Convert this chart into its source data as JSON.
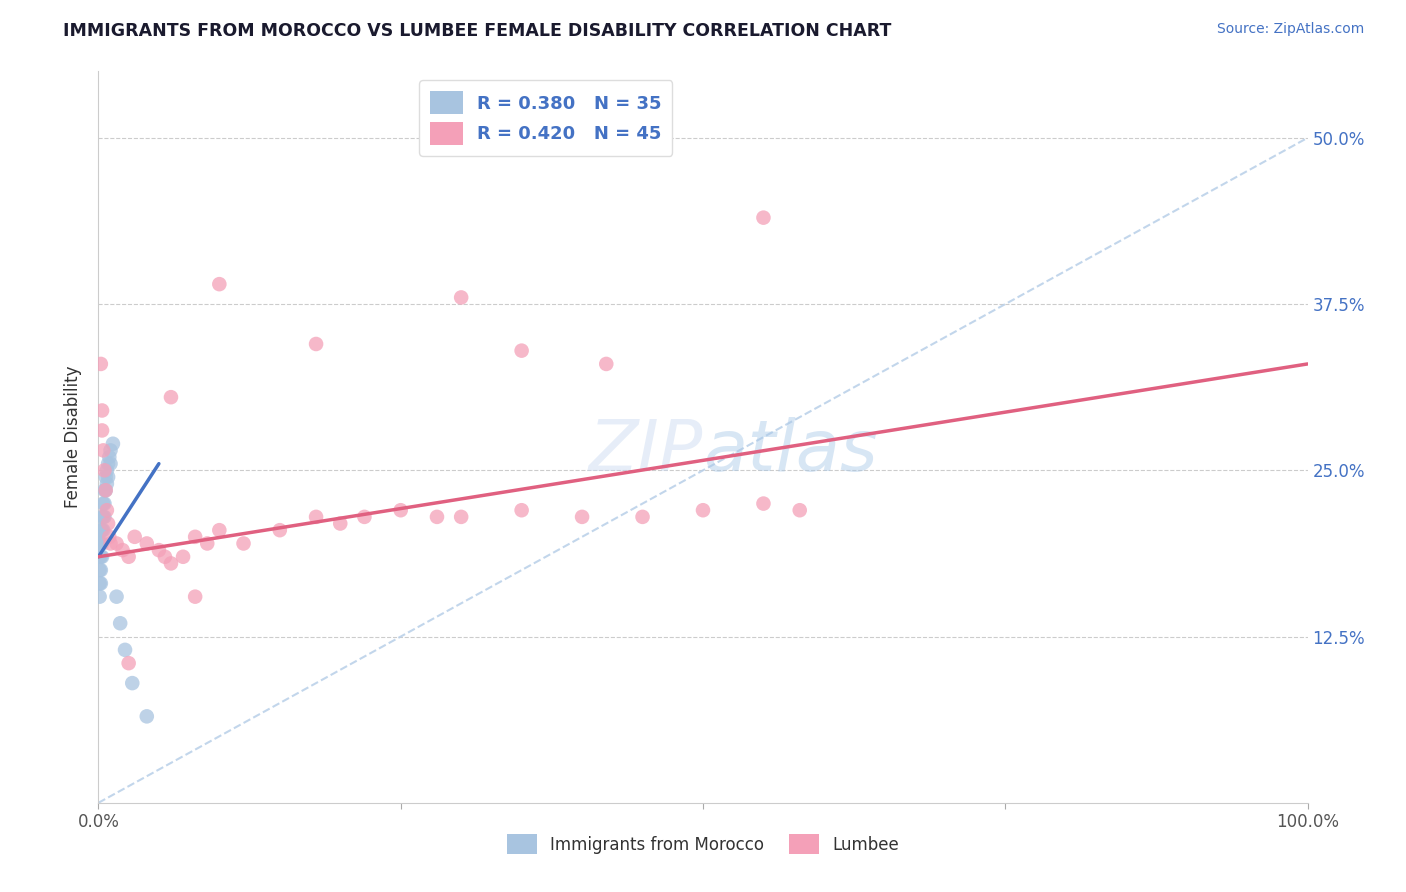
{
  "title": "IMMIGRANTS FROM MOROCCO VS LUMBEE FEMALE DISABILITY CORRELATION CHART",
  "source": "Source: ZipAtlas.com",
  "ylabel": "Female Disability",
  "legend_label1": "Immigrants from Morocco",
  "legend_label2": "Lumbee",
  "r1": 0.38,
  "n1": 35,
  "r2": 0.42,
  "n2": 45,
  "xlim": [
    0,
    1.0
  ],
  "ylim": [
    0,
    0.55
  ],
  "yticks": [
    0,
    0.125,
    0.25,
    0.375,
    0.5
  ],
  "ytick_labels": [
    "",
    "12.5%",
    "25.0%",
    "37.5%",
    "50.0%"
  ],
  "color_morocco": "#a8c4e0",
  "color_lumbee": "#f4a0b8",
  "line_color_morocco": "#4472c4",
  "line_color_lumbee": "#e06080",
  "diag_color": "#b8cfe8",
  "background_color": "#ffffff",
  "morocco_x": [
    0.001,
    0.001,
    0.001,
    0.001,
    0.001,
    0.002,
    0.002,
    0.002,
    0.002,
    0.002,
    0.003,
    0.003,
    0.003,
    0.003,
    0.004,
    0.004,
    0.004,
    0.005,
    0.005,
    0.005,
    0.006,
    0.006,
    0.007,
    0.007,
    0.008,
    0.008,
    0.009,
    0.01,
    0.01,
    0.012,
    0.015,
    0.018,
    0.022,
    0.028,
    0.04
  ],
  "morocco_y": [
    0.195,
    0.185,
    0.175,
    0.165,
    0.155,
    0.205,
    0.195,
    0.185,
    0.175,
    0.165,
    0.215,
    0.205,
    0.195,
    0.185,
    0.225,
    0.215,
    0.205,
    0.235,
    0.225,
    0.215,
    0.245,
    0.235,
    0.25,
    0.24,
    0.255,
    0.245,
    0.26,
    0.265,
    0.255,
    0.27,
    0.155,
    0.135,
    0.115,
    0.09,
    0.065
  ],
  "lumbee_x": [
    0.002,
    0.003,
    0.003,
    0.004,
    0.005,
    0.006,
    0.007,
    0.008,
    0.009,
    0.01,
    0.015,
    0.02,
    0.025,
    0.03,
    0.04,
    0.05,
    0.055,
    0.06,
    0.07,
    0.08,
    0.09,
    0.1,
    0.12,
    0.15,
    0.18,
    0.2,
    0.22,
    0.25,
    0.28,
    0.3,
    0.35,
    0.4,
    0.45,
    0.5,
    0.55,
    0.58,
    0.3,
    0.1,
    0.18,
    0.35,
    0.42,
    0.55,
    0.06,
    0.08,
    0.025
  ],
  "lumbee_y": [
    0.33,
    0.295,
    0.28,
    0.265,
    0.25,
    0.235,
    0.22,
    0.21,
    0.2,
    0.195,
    0.195,
    0.19,
    0.185,
    0.2,
    0.195,
    0.19,
    0.185,
    0.18,
    0.185,
    0.2,
    0.195,
    0.205,
    0.195,
    0.205,
    0.215,
    0.21,
    0.215,
    0.22,
    0.215,
    0.215,
    0.22,
    0.215,
    0.215,
    0.22,
    0.225,
    0.22,
    0.38,
    0.39,
    0.345,
    0.34,
    0.33,
    0.44,
    0.305,
    0.155,
    0.105
  ],
  "morocco_line_x": [
    0.0,
    0.05
  ],
  "morocco_line_y": [
    0.185,
    0.255
  ],
  "lumbee_line_x": [
    0.0,
    1.0
  ],
  "lumbee_line_y": [
    0.185,
    0.33
  ]
}
